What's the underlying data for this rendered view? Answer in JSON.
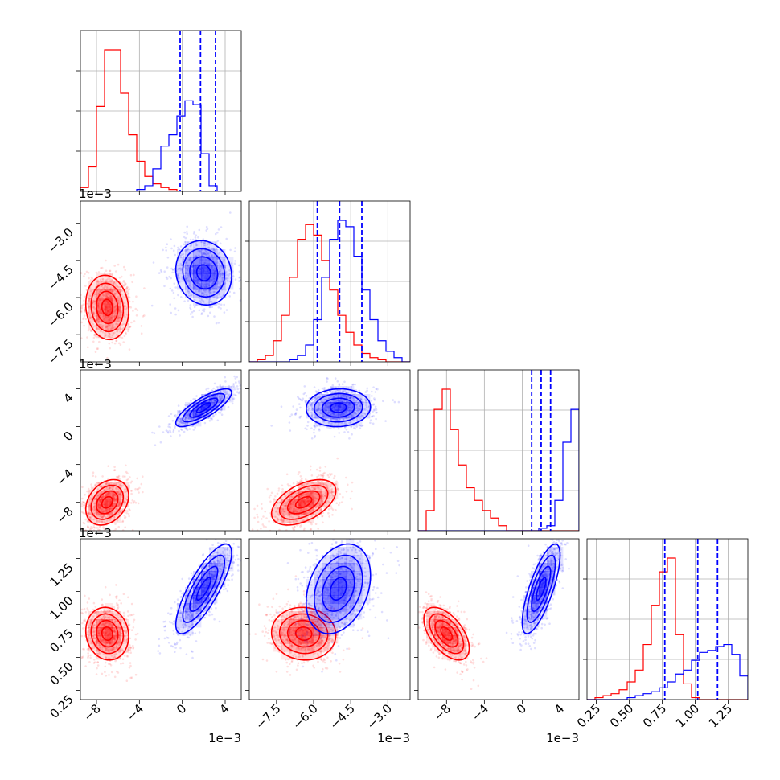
{
  "chart_data": {
    "type": "corner",
    "title": "",
    "parameters": [
      {
        "index": 0,
        "range": [
          -9.5,
          5.5
        ],
        "ticks": [
          -8,
          -4,
          0,
          4
        ],
        "tick_labels": [
          "−8",
          "−4",
          "0",
          "4"
        ],
        "offset_label": "1e−3"
      },
      {
        "index": 1,
        "range": [
          -8.6,
          -2.1
        ],
        "ticks": [
          -7.5,
          -6.0,
          -4.5,
          -3.0
        ],
        "tick_labels": [
          "−7.5",
          "−6.0",
          "−4.5",
          "−3.0"
        ],
        "offset_label": "1e−3"
      },
      {
        "index": 2,
        "range": [
          -11.0,
          6.0
        ],
        "ticks": [
          -8,
          -4,
          0,
          4
        ],
        "tick_labels": [
          "−8",
          "−4",
          "0",
          "4"
        ],
        "offset_label": "1e−3"
      },
      {
        "index": 3,
        "range": [
          0.18,
          1.4
        ],
        "ticks": [
          0.25,
          0.5,
          0.75,
          1.0,
          1.25
        ],
        "tick_labels": [
          "0.25",
          "0.50",
          "0.75",
          "1.00",
          "1.25"
        ],
        "offset_label": ""
      }
    ],
    "series": [
      {
        "color": "#ff0000",
        "means": [
          -7.0,
          -6.4,
          -8.0,
          0.68
        ],
        "stds": [
          1.0,
          0.65,
          1.2,
          0.1
        ],
        "correlations": [
          [
            0,
            1,
            -0.1
          ],
          [
            0,
            2,
            0.3
          ],
          [
            0,
            3,
            -0.1
          ],
          [
            1,
            2,
            0.5
          ],
          [
            1,
            3,
            -0.05
          ],
          [
            2,
            3,
            -0.55
          ]
        ],
        "histograms": [
          [
            2,
            13,
            45,
            75,
            75,
            52,
            30,
            16,
            8,
            4,
            2,
            1,
            0,
            0,
            0,
            0,
            0,
            0,
            0,
            0
          ],
          [
            0,
            1,
            3,
            10,
            22,
            40,
            58,
            65,
            60,
            48,
            34,
            22,
            14,
            8,
            4,
            2,
            1,
            0,
            0,
            0
          ],
          [
            0,
            8,
            48,
            56,
            40,
            26,
            17,
            12,
            8,
            5,
            2,
            0,
            0,
            0,
            0,
            0,
            0,
            0,
            0,
            0
          ],
          [
            0,
            1,
            2,
            3,
            5,
            9,
            15,
            28,
            48,
            65,
            72,
            33,
            8,
            1,
            0,
            0,
            0,
            0,
            0,
            0
          ]
        ],
        "quantiles": []
      },
      {
        "color": "#0000ff",
        "means": [
          2.0,
          -5.0,
          2.0,
          1.02
        ],
        "stds": [
          1.3,
          0.65,
          1.0,
          0.17
        ],
        "correlations": [
          [
            0,
            1,
            -0.1
          ],
          [
            0,
            2,
            0.8
          ],
          [
            0,
            3,
            0.8
          ],
          [
            1,
            2,
            0.05
          ],
          [
            1,
            3,
            0.3
          ],
          [
            2,
            3,
            0.75
          ]
        ],
        "histograms": [
          [
            0,
            0,
            0,
            0,
            0,
            0,
            0,
            1,
            3,
            12,
            24,
            30,
            40,
            48,
            46,
            20,
            3,
            0,
            0,
            0
          ],
          [
            0,
            0,
            0,
            0,
            0,
            1,
            3,
            8,
            20,
            40,
            58,
            67,
            64,
            50,
            34,
            20,
            10,
            5,
            2,
            0
          ],
          [
            0,
            0,
            0,
            0,
            0,
            0,
            0,
            0,
            0,
            0,
            0,
            0,
            0,
            0,
            0,
            1,
            2,
            12,
            35,
            48
          ],
          [
            0,
            0,
            0,
            0,
            0,
            1,
            2,
            3,
            4,
            6,
            9,
            13,
            15,
            20,
            24,
            25,
            27,
            28,
            23,
            12
          ]
        ],
        "quantiles": [
          [
            -0.2,
            1.7,
            3.1
          ],
          [
            -5.85,
            -4.95,
            -4.05
          ],
          [
            1.0,
            2.0,
            3.0
          ],
          [
            0.77,
            1.02,
            1.17
          ]
        ]
      }
    ],
    "contour_levels_sigma": [
      0.5,
      1.0,
      1.5,
      2.0
    ],
    "grid": true,
    "legend": "none"
  }
}
